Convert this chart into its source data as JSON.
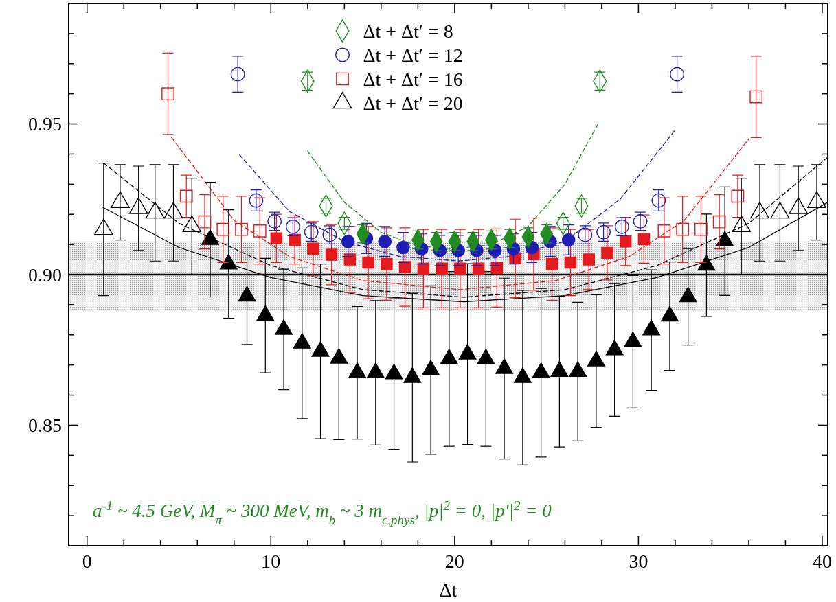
{
  "chart_data": {
    "type": "scatter",
    "xlabel": "Δt",
    "xlim": [
      -1,
      40.3
    ],
    "ylim": [
      0.81,
      0.99
    ],
    "xticks": [
      0,
      {
        "value": 2,
        "label": null
      },
      {
        "value": 4,
        "label": null
      },
      {
        "value": 6,
        "label": null
      },
      {
        "value": 8,
        "label": null
      },
      10,
      {
        "value": 12,
        "label": null
      },
      {
        "value": 14,
        "label": null
      },
      {
        "value": 16,
        "label": null
      },
      {
        "value": 18,
        "label": null
      },
      20,
      {
        "value": 22,
        "label": null
      },
      {
        "value": 24,
        "label": null
      },
      {
        "value": 26,
        "label": null
      },
      {
        "value": 28,
        "label": null
      },
      30,
      {
        "value": 32,
        "label": null
      },
      {
        "value": 34,
        "label": null
      },
      {
        "value": 36,
        "label": null
      },
      {
        "value": 38,
        "label": null
      },
      40
    ],
    "yticks": [
      {
        "value": 0.82,
        "label": null
      },
      {
        "value": 0.83,
        "label": null
      },
      {
        "value": 0.84,
        "label": null
      },
      0.85,
      {
        "value": 0.86,
        "label": null
      },
      {
        "value": 0.87,
        "label": null
      },
      {
        "value": 0.88,
        "label": null
      },
      {
        "value": 0.89,
        "label": null
      },
      {
        "value": 0.9,
        "label": "0.90"
      },
      {
        "value": 0.91,
        "label": null
      },
      {
        "value": 0.92,
        "label": null
      },
      {
        "value": 0.93,
        "label": null
      },
      {
        "value": 0.94,
        "label": null
      },
      0.95,
      {
        "value": 0.96,
        "label": null
      },
      {
        "value": 0.97,
        "label": null
      },
      {
        "value": 0.98,
        "label": null
      }
    ],
    "grid": false,
    "legend": "top",
    "bands": [
      {
        "axis": "y",
        "from": 0.888,
        "to": 0.911,
        "color": "#a0a0a0"
      }
    ],
    "ref_lines": [
      {
        "axis": "y",
        "value": 0.9,
        "color": "#000000"
      }
    ],
    "annotations": [
      "a$^{-1}$ ~ 4.5 GeV,  M$_{π}$ ~ 300 MeV,  m$_{b}$ ~ 3 m$_{c,phys}$,  |p|$^{2}$ = 0,  |p′|$^{2}$ = 0"
    ],
    "series": [
      {
        "type": "line",
        "color": "#000000",
        "line_style": "solid",
        "x": [
          0.8,
          5,
          10,
          15,
          20.5,
          26,
          31,
          36,
          40.3
        ],
        "values": [
          0.9225,
          0.909,
          0.899,
          0.893,
          0.891,
          0.893,
          0.899,
          0.909,
          0.924
        ]
      },
      {
        "type": "line",
        "color": "#000000",
        "line_style": "dashed",
        "x": [
          0.9,
          5,
          10,
          15,
          20.5,
          26,
          31,
          36,
          40.3
        ],
        "values": [
          0.937,
          0.917,
          0.903,
          0.895,
          0.8925,
          0.895,
          0.903,
          0.917,
          0.939
        ]
      },
      {
        "type": "line",
        "color": "#e41a1c",
        "line_style": "dashed",
        "x": [
          4.6,
          8,
          11,
          15,
          20.3,
          25.5,
          29.5,
          32.5,
          36
        ],
        "values": [
          0.9455,
          0.918,
          0.906,
          0.898,
          0.895,
          0.898,
          0.906,
          0.918,
          0.945
        ]
      },
      {
        "type": "line",
        "color": "#1e1eb4",
        "line_style": "dashed",
        "x": [
          8.3,
          11,
          14,
          17,
          20.2,
          23,
          26,
          29,
          32
        ],
        "values": [
          0.9397,
          0.921,
          0.911,
          0.906,
          0.9045,
          0.906,
          0.911,
          0.925,
          0.948
        ]
      },
      {
        "type": "line",
        "color": "#228b22",
        "line_style": "dashed",
        "x": [
          12,
          14,
          16,
          18,
          20,
          22,
          24,
          26,
          27.8
        ],
        "values": [
          0.941,
          0.924,
          0.914,
          0.9095,
          0.9085,
          0.91,
          0.916,
          0.93,
          0.95
        ]
      },
      {
        "color": "#000000",
        "marker": "triangle",
        "x": [
          6.7,
          7.7,
          8.7,
          9.7,
          10.7,
          11.7,
          12.7,
          13.7,
          14.7,
          15.7,
          16.7,
          17.7,
          18.7,
          19.7,
          20.7,
          21.7,
          22.7,
          23.7,
          24.7,
          25.7,
          26.7,
          27.7,
          28.7,
          29.7,
          30.7,
          31.7,
          32.7,
          33.7,
          34.7
        ],
        "values": [
          0.9116,
          0.9035,
          0.8928,
          0.8864,
          0.8818,
          0.8772,
          0.8745,
          0.8722,
          0.8674,
          0.8674,
          0.867,
          0.8658,
          0.8683,
          0.872,
          0.8736,
          0.872,
          0.8688,
          0.8658,
          0.8674,
          0.8678,
          0.8678,
          0.8713,
          0.875,
          0.8777,
          0.8816,
          0.8862,
          0.8926,
          0.9031,
          0.9111
        ],
        "errors": [
          0.019,
          0.018,
          0.016,
          0.019,
          0.02,
          0.025,
          0.029,
          0.027,
          0.022,
          0.024,
          0.025,
          0.028,
          0.028,
          0.029,
          0.03,
          0.029,
          0.03,
          0.029,
          0.028,
          0.025,
          0.023,
          0.022,
          0.022,
          0.022,
          0.02,
          0.018,
          0.016,
          0.017,
          0.018
        ]
      },
      {
        "color": "#e41a1c",
        "marker": "square",
        "x": [
          10.3,
          11.3,
          12.3,
          13.3,
          14.3,
          15.3,
          16.3,
          17.3,
          18.3,
          19.3,
          20.3,
          21.3,
          22.3,
          23.3,
          24.3,
          25.3,
          26.3,
          27.3,
          28.3,
          29.3,
          30.3
        ],
        "values": [
          0.912,
          0.9115,
          0.9086,
          0.9066,
          0.905,
          0.904,
          0.9035,
          0.9025,
          0.902,
          0.902,
          0.902,
          0.902,
          0.9022,
          0.9054,
          0.9068,
          0.9035,
          0.904,
          0.905,
          0.9072,
          0.911,
          0.9118
        ],
        "errors": [
          0.008,
          0.008,
          0.009,
          0.01,
          0.011,
          0.012,
          0.012,
          0.013,
          0.013,
          0.013,
          0.013,
          0.013,
          0.013,
          0.013,
          0.012,
          0.012,
          0.011,
          0.01,
          0.009,
          0.008,
          0.008
        ]
      },
      {
        "color": "#1e1eb4",
        "marker": "circle",
        "x": [
          14.2,
          15.2,
          16.2,
          17.2,
          18.2,
          19.2,
          20.2,
          21.2,
          22.2,
          23.2,
          24.2,
          25.2,
          26.2
        ],
        "values": [
          0.911,
          0.912,
          0.911,
          0.909,
          0.9085,
          0.908,
          0.908,
          0.908,
          0.908,
          0.9085,
          0.909,
          0.911,
          0.9115
        ],
        "errors": [
          0.005,
          0.005,
          0.005,
          0.005,
          0.005,
          0.005,
          0.005,
          0.005,
          0.005,
          0.005,
          0.005,
          0.005,
          0.005
        ]
      },
      {
        "color": "#228b22",
        "marker": "diamond",
        "x": [
          15,
          18,
          19,
          20,
          21,
          22,
          23,
          24,
          25
        ],
        "values": [
          0.9135,
          0.9115,
          0.911,
          0.911,
          0.911,
          0.9115,
          0.912,
          0.9125,
          0.9135
        ],
        "errors": [
          0.003,
          0.003,
          0.003,
          0.003,
          0.003,
          0.003,
          0.003,
          0.003,
          0.003
        ]
      },
      {
        "name": "Δt + Δt′ = 8",
        "color": "#228b22",
        "marker": "diamond",
        "x": [
          12,
          13,
          14,
          25.9,
          26.9,
          27.9
        ],
        "values": [
          0.9642,
          0.9228,
          0.917,
          0.917,
          0.9228,
          0.9642
        ],
        "errors": [
          0.003,
          0.0025,
          0.002,
          0.002,
          0.0025,
          0.003
        ]
      },
      {
        "name": "Δt + Δt′ = 12",
        "color": "#1e1eb4",
        "marker": "circle",
        "x": [
          8.2,
          9.2,
          10.2,
          11.2,
          12.2,
          13.2,
          27.1,
          28.1,
          29.1,
          30.1,
          31.1,
          32.1
        ],
        "values": [
          0.9665,
          0.9246,
          0.9177,
          0.9159,
          0.9141,
          0.9132,
          0.9132,
          0.9141,
          0.9159,
          0.9177,
          0.9246,
          0.9665
        ],
        "errors": [
          0.006,
          0.0035,
          0.003,
          0.003,
          0.003,
          0.003,
          0.003,
          0.003,
          0.003,
          0.003,
          0.0035,
          0.006
        ]
      },
      {
        "name": "Δt + Δt′ = 16",
        "color": "#e41a1c",
        "marker": "square",
        "x": [
          4.4,
          5.4,
          6.4,
          7.4,
          8.4,
          9.4,
          31.4,
          32.4,
          33.4,
          34.4,
          35.4,
          36.4
        ],
        "values": [
          0.96,
          0.926,
          0.9175,
          0.915,
          0.915,
          0.9145,
          0.9145,
          0.915,
          0.915,
          0.9175,
          0.926,
          0.959
        ],
        "errors": [
          0.0135,
          0.007,
          0.009,
          0.011,
          0.011,
          0.011,
          0.011,
          0.011,
          0.011,
          0.009,
          0.007,
          0.0135
        ]
      },
      {
        "name": "Δt + Δt′ = 20",
        "color": "#000000",
        "marker": "triangle",
        "x": [
          0.9,
          1.8,
          2.8,
          3.7,
          4.7,
          5.7,
          35.6,
          36.6,
          37.7,
          38.7,
          39.7
        ],
        "values": [
          0.915,
          0.924,
          0.922,
          0.9205,
          0.9205,
          0.916,
          0.916,
          0.9205,
          0.9205,
          0.922,
          0.924
        ],
        "errors": [
          0.022,
          0.0125,
          0.014,
          0.016,
          0.016,
          0.016,
          0.016,
          0.016,
          0.016,
          0.014,
          0.0125
        ]
      }
    ]
  }
}
